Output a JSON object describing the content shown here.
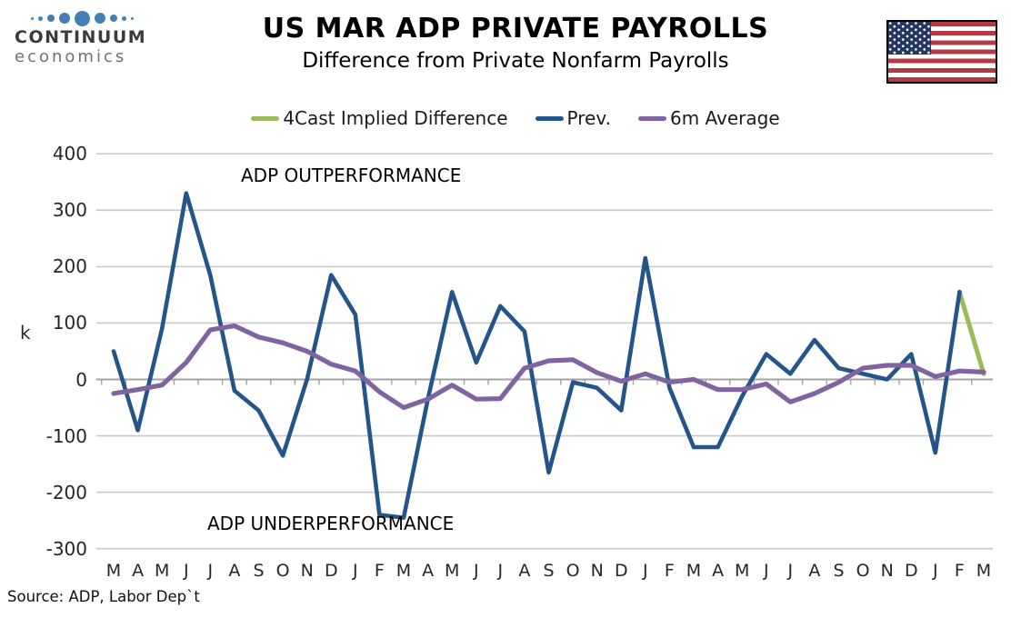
{
  "header": {
    "logo": {
      "line1": "CONTINUUM",
      "line2": "economics"
    },
    "title": "US MAR ADP PRIVATE PAYROLLS",
    "subtitle": "Difference from Private Nonfarm Payrolls"
  },
  "legend": [
    {
      "label": "4Cast Implied Difference",
      "color": "#9bbb59"
    },
    {
      "label": "Prev.",
      "color": "#24558a"
    },
    {
      "label": "6m Average",
      "color": "#8064a2"
    }
  ],
  "annotations": {
    "top": "ADP OUTPERFORMANCE",
    "bottom": "ADP UNDERPERFORMANCE"
  },
  "axis": {
    "unit_label": "k",
    "yticks": [
      400,
      300,
      200,
      100,
      0,
      -100,
      -200,
      -300
    ]
  },
  "source": "Source: ADP, Labor Dep`t",
  "chart_data": {
    "type": "line",
    "title": "US MAR ADP PRIVATE PAYROLLS",
    "subtitle": "Difference from Private Nonfarm Payrolls",
    "ylabel": "k",
    "ylim": [
      -300,
      400
    ],
    "ytick_step": 100,
    "grid": "horizontal",
    "legend_position": "top",
    "x_labels": [
      "M",
      "A",
      "M",
      "J",
      "J",
      "A",
      "S",
      "O",
      "N",
      "D",
      "J",
      "F",
      "M",
      "A",
      "M",
      "J",
      "J",
      "A",
      "S",
      "O",
      "N",
      "D",
      "J",
      "F",
      "M",
      "A",
      "M",
      "J",
      "J",
      "A",
      "S",
      "O",
      "N",
      "D",
      "J",
      "F",
      "M"
    ],
    "annotations": [
      "ADP OUTPERFORMANCE",
      "ADP UNDERPERFORMANCE"
    ],
    "series": [
      {
        "name": "4Cast Implied Difference",
        "color": "#9bbb59",
        "values": [
          null,
          null,
          null,
          null,
          null,
          null,
          null,
          null,
          null,
          null,
          null,
          null,
          null,
          null,
          null,
          null,
          null,
          null,
          null,
          null,
          null,
          null,
          null,
          null,
          null,
          null,
          null,
          null,
          null,
          null,
          null,
          null,
          null,
          null,
          null,
          155,
          10
        ]
      },
      {
        "name": "Prev.",
        "color": "#24558a",
        "values": [
          50,
          -90,
          90,
          330,
          185,
          -20,
          -55,
          -135,
          0,
          185,
          115,
          -240,
          -245,
          -35,
          155,
          30,
          130,
          85,
          -165,
          -5,
          -15,
          -55,
          215,
          -15,
          -120,
          -120,
          -30,
          45,
          10,
          70,
          20,
          10,
          0,
          45,
          -130,
          155,
          null
        ]
      },
      {
        "name": "6m Average",
        "color": "#8064a2",
        "values": [
          -25,
          -18,
          -10,
          30,
          88,
          95,
          75,
          65,
          50,
          27,
          15,
          -22,
          -50,
          -35,
          -10,
          -35,
          -34,
          20,
          33,
          35,
          12,
          -3,
          10,
          -5,
          0,
          -18,
          -18,
          -8,
          -40,
          -25,
          -5,
          20,
          25,
          25,
          5,
          15,
          13
        ]
      }
    ]
  }
}
